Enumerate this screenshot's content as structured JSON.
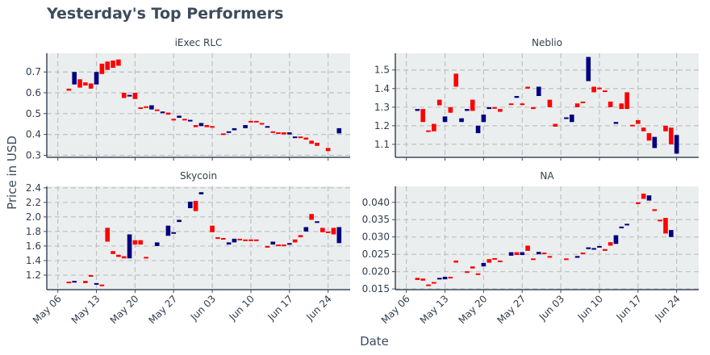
{
  "colors": {
    "up": "#000080",
    "down": "#ff0000",
    "panel_bg": "#ebeeef",
    "grid": "#c0c0c0",
    "axis": "#3d4b5c",
    "text": "#3d4b5c"
  },
  "chart_data": {
    "type": "candlestick",
    "title": "Yesterday's Top Performers",
    "xlabel": "Date",
    "ylabel": "Price in USD",
    "x_ticks": [
      "May 06",
      "May 13",
      "May 20",
      "May 27",
      "Jun 03",
      "Jun 10",
      "Jun 17",
      "Jun 24"
    ],
    "grid": true,
    "panels": [
      {
        "name": "iExec RLC",
        "ylim": [
          0.29,
          0.79
        ],
        "y_ticks": [
          0.3,
          0.4,
          0.5,
          0.6,
          0.7
        ],
        "y_tick_labels": [
          "0.3",
          "0.4",
          "0.5",
          "0.6",
          "0.7"
        ],
        "candles": [
          {
            "d": "May 08",
            "o": 0.62,
            "c": 0.61
          },
          {
            "d": "May 09",
            "o": 0.64,
            "c": 0.7
          },
          {
            "d": "May 10",
            "o": 0.665,
            "c": 0.625
          },
          {
            "d": "May 11",
            "o": 0.65,
            "c": 0.635
          },
          {
            "d": "May 12",
            "o": 0.645,
            "c": 0.62
          },
          {
            "d": "May 13",
            "o": 0.64,
            "c": 0.7
          },
          {
            "d": "May 14",
            "o": 0.74,
            "c": 0.69
          },
          {
            "d": "May 15",
            "o": 0.75,
            "c": 0.71
          },
          {
            "d": "May 16",
            "o": 0.755,
            "c": 0.72
          },
          {
            "d": "May 17",
            "o": 0.76,
            "c": 0.73
          },
          {
            "d": "May 18",
            "o": 0.6,
            "c": 0.575
          },
          {
            "d": "May 19",
            "o": 0.585,
            "c": 0.59
          },
          {
            "d": "May 20",
            "o": 0.6,
            "c": 0.57
          },
          {
            "d": "May 21",
            "o": 0.53,
            "c": 0.525
          },
          {
            "d": "May 22",
            "o": 0.535,
            "c": 0.53
          },
          {
            "d": "May 23",
            "o": 0.52,
            "c": 0.54
          },
          {
            "d": "May 24",
            "o": 0.52,
            "c": 0.515
          },
          {
            "d": "May 25",
            "o": 0.505,
            "c": 0.51
          },
          {
            "d": "May 26",
            "o": 0.505,
            "c": 0.495
          },
          {
            "d": "May 27",
            "o": 0.475,
            "c": 0.47
          },
          {
            "d": "May 28",
            "o": 0.48,
            "c": 0.49
          },
          {
            "d": "May 29",
            "o": 0.475,
            "c": 0.47
          },
          {
            "d": "May 30",
            "o": 0.465,
            "c": 0.47
          },
          {
            "d": "May 31",
            "o": 0.445,
            "c": 0.435
          },
          {
            "d": "Jun 01",
            "o": 0.44,
            "c": 0.455
          },
          {
            "d": "Jun 02",
            "o": 0.445,
            "c": 0.435
          },
          {
            "d": "Jun 03",
            "o": 0.44,
            "c": 0.435
          },
          {
            "d": "Jun 05",
            "o": 0.405,
            "c": 0.4
          },
          {
            "d": "Jun 06",
            "o": 0.41,
            "c": 0.415
          },
          {
            "d": "Jun 07",
            "o": 0.42,
            "c": 0.43
          },
          {
            "d": "Jun 09",
            "o": 0.43,
            "c": 0.445
          },
          {
            "d": "Jun 10",
            "o": 0.465,
            "c": 0.46
          },
          {
            "d": "Jun 11",
            "o": 0.465,
            "c": 0.46
          },
          {
            "d": "Jun 12",
            "o": 0.455,
            "c": 0.45
          },
          {
            "d": "Jun 13",
            "o": 0.435,
            "c": 0.44
          },
          {
            "d": "Jun 14",
            "o": 0.415,
            "c": 0.41
          },
          {
            "d": "Jun 15",
            "o": 0.41,
            "c": 0.405
          },
          {
            "d": "Jun 16",
            "o": 0.41,
            "c": 0.4
          },
          {
            "d": "Jun 17",
            "o": 0.4,
            "c": 0.41
          },
          {
            "d": "Jun 18",
            "o": 0.385,
            "c": 0.39
          },
          {
            "d": "Jun 19",
            "o": 0.39,
            "c": 0.385
          },
          {
            "d": "Jun 20",
            "o": 0.385,
            "c": 0.375
          },
          {
            "d": "Jun 21",
            "o": 0.37,
            "c": 0.355
          },
          {
            "d": "Jun 22",
            "o": 0.36,
            "c": 0.345
          },
          {
            "d": "Jun 24",
            "o": 0.335,
            "c": 0.32
          },
          {
            "d": "Jun 26",
            "o": 0.405,
            "c": 0.43
          }
        ]
      },
      {
        "name": "Neblio",
        "ylim": [
          1.03,
          1.59
        ],
        "y_ticks": [
          1.1,
          1.2,
          1.3,
          1.4,
          1.5
        ],
        "y_tick_labels": [
          "1.1",
          "1.2",
          "1.3",
          "1.4",
          "1.5"
        ],
        "candles": [
          {
            "d": "May 08",
            "o": 1.28,
            "c": 1.29
          },
          {
            "d": "May 09",
            "o": 1.29,
            "c": 1.22
          },
          {
            "d": "May 10",
            "o": 1.175,
            "c": 1.17
          },
          {
            "d": "May 11",
            "o": 1.21,
            "c": 1.17
          },
          {
            "d": "May 12",
            "o": 1.34,
            "c": 1.31
          },
          {
            "d": "May 13",
            "o": 1.22,
            "c": 1.25
          },
          {
            "d": "May 14",
            "o": 1.3,
            "c": 1.27
          },
          {
            "d": "May 15",
            "o": 1.48,
            "c": 1.41
          },
          {
            "d": "May 16",
            "o": 1.22,
            "c": 1.24
          },
          {
            "d": "May 17",
            "o": 1.28,
            "c": 1.29
          },
          {
            "d": "May 18",
            "o": 1.34,
            "c": 1.28
          },
          {
            "d": "May 19",
            "o": 1.16,
            "c": 1.2
          },
          {
            "d": "May 20",
            "o": 1.22,
            "c": 1.26
          },
          {
            "d": "May 21",
            "o": 1.29,
            "c": 1.3
          },
          {
            "d": "May 22",
            "o": 1.3,
            "c": 1.295
          },
          {
            "d": "May 23",
            "o": 1.29,
            "c": 1.275
          },
          {
            "d": "May 25",
            "o": 1.32,
            "c": 1.315
          },
          {
            "d": "May 26",
            "o": 1.35,
            "c": 1.36
          },
          {
            "d": "May 27",
            "o": 1.32,
            "c": 1.315
          },
          {
            "d": "May 28",
            "o": 1.41,
            "c": 1.4
          },
          {
            "d": "May 29",
            "o": 1.3,
            "c": 1.29
          },
          {
            "d": "May 30",
            "o": 1.36,
            "c": 1.41
          },
          {
            "d": "Jun 01",
            "o": 1.34,
            "c": 1.3
          },
          {
            "d": "Jun 02",
            "o": 1.21,
            "c": 1.195
          },
          {
            "d": "Jun 04",
            "o": 1.24,
            "c": 1.245
          },
          {
            "d": "Jun 05",
            "o": 1.22,
            "c": 1.26
          },
          {
            "d": "Jun 06",
            "o": 1.32,
            "c": 1.3
          },
          {
            "d": "Jun 07",
            "o": 1.33,
            "c": 1.325
          },
          {
            "d": "Jun 08",
            "o": 1.44,
            "c": 1.57
          },
          {
            "d": "Jun 09",
            "o": 1.41,
            "c": 1.38
          },
          {
            "d": "Jun 10",
            "o": 1.405,
            "c": 1.4
          },
          {
            "d": "Jun 11",
            "o": 1.39,
            "c": 1.385
          },
          {
            "d": "Jun 12",
            "o": 1.33,
            "c": 1.3
          },
          {
            "d": "Jun 13",
            "o": 1.21,
            "c": 1.22
          },
          {
            "d": "Jun 14",
            "o": 1.32,
            "c": 1.29
          },
          {
            "d": "Jun 15",
            "o": 1.38,
            "c": 1.29
          },
          {
            "d": "Jun 16",
            "o": 1.205,
            "c": 1.2
          },
          {
            "d": "Jun 17",
            "o": 1.23,
            "c": 1.21
          },
          {
            "d": "Jun 18",
            "o": 1.19,
            "c": 1.17
          },
          {
            "d": "Jun 19",
            "o": 1.16,
            "c": 1.12
          },
          {
            "d": "Jun 20",
            "o": 1.08,
            "c": 1.14
          },
          {
            "d": "Jun 22",
            "o": 1.2,
            "c": 1.17
          },
          {
            "d": "Jun 23",
            "o": 1.19,
            "c": 1.1
          },
          {
            "d": "Jun 24",
            "o": 1.05,
            "c": 1.15
          }
        ]
      },
      {
        "name": "Skycoin",
        "ylim": [
          1.0,
          2.42
        ],
        "y_ticks": [
          1.2,
          1.4,
          1.6,
          1.8,
          2.0,
          2.2,
          2.4
        ],
        "y_tick_labels": [
          "1.2",
          "1.4",
          "1.6",
          "1.8",
          "2.0",
          "2.2",
          "2.4"
        ],
        "candles": [
          {
            "d": "May 08",
            "o": 1.11,
            "c": 1.09
          },
          {
            "d": "May 09",
            "o": 1.11,
            "c": 1.12
          },
          {
            "d": "May 11",
            "o": 1.12,
            "c": 1.09
          },
          {
            "d": "May 12",
            "o": 1.2,
            "c": 1.19
          },
          {
            "d": "May 13",
            "o": 1.07,
            "c": 1.09
          },
          {
            "d": "May 14",
            "o": 1.07,
            "c": 1.065
          },
          {
            "d": "May 15",
            "o": 1.85,
            "c": 1.66
          },
          {
            "d": "May 16",
            "o": 1.53,
            "c": 1.49
          },
          {
            "d": "May 17",
            "o": 1.48,
            "c": 1.45
          },
          {
            "d": "May 18",
            "o": 1.46,
            "c": 1.43
          },
          {
            "d": "May 19",
            "o": 1.43,
            "c": 1.76
          },
          {
            "d": "May 20",
            "o": 1.68,
            "c": 1.62
          },
          {
            "d": "May 21",
            "o": 1.68,
            "c": 1.62
          },
          {
            "d": "May 22",
            "o": 1.45,
            "c": 1.445
          },
          {
            "d": "May 24",
            "o": 1.6,
            "c": 1.65
          },
          {
            "d": "May 26",
            "o": 1.74,
            "c": 1.88
          },
          {
            "d": "May 27",
            "o": 1.78,
            "c": 1.79
          },
          {
            "d": "May 28",
            "o": 1.93,
            "c": 1.96
          },
          {
            "d": "May 30",
            "o": 2.12,
            "c": 2.21
          },
          {
            "d": "May 31",
            "o": 2.22,
            "c": 2.08
          },
          {
            "d": "Jun 01",
            "o": 2.31,
            "c": 2.34
          },
          {
            "d": "Jun 03",
            "o": 1.88,
            "c": 1.79
          },
          {
            "d": "Jun 04",
            "o": 1.72,
            "c": 1.715
          },
          {
            "d": "Jun 05",
            "o": 1.71,
            "c": 1.705
          },
          {
            "d": "Jun 06",
            "o": 1.62,
            "c": 1.65
          },
          {
            "d": "Jun 07",
            "o": 1.65,
            "c": 1.7
          },
          {
            "d": "Jun 08",
            "o": 1.7,
            "c": 1.695
          },
          {
            "d": "Jun 09",
            "o": 1.69,
            "c": 1.685
          },
          {
            "d": "Jun 10",
            "o": 1.69,
            "c": 1.685
          },
          {
            "d": "Jun 11",
            "o": 1.69,
            "c": 1.685
          },
          {
            "d": "Jun 13",
            "o": 1.6,
            "c": 1.595
          },
          {
            "d": "Jun 14",
            "o": 1.62,
            "c": 1.66
          },
          {
            "d": "Jun 15",
            "o": 1.62,
            "c": 1.61
          },
          {
            "d": "Jun 16",
            "o": 1.62,
            "c": 1.61
          },
          {
            "d": "Jun 17",
            "o": 1.63,
            "c": 1.64
          },
          {
            "d": "Jun 18",
            "o": 1.69,
            "c": 1.65
          },
          {
            "d": "Jun 19",
            "o": 1.75,
            "c": 1.72
          },
          {
            "d": "Jun 20",
            "o": 1.8,
            "c": 1.86
          },
          {
            "d": "Jun 21",
            "o": 2.04,
            "c": 1.96
          },
          {
            "d": "Jun 22",
            "o": 1.93,
            "c": 1.94
          },
          {
            "d": "Jun 23",
            "o": 1.85,
            "c": 1.79
          },
          {
            "d": "Jun 24",
            "o": 1.8,
            "c": 1.79
          },
          {
            "d": "Jun 25",
            "o": 1.85,
            "c": 1.76
          },
          {
            "d": "Jun 26",
            "o": 1.64,
            "c": 1.86
          }
        ]
      },
      {
        "name": "NA",
        "ylim": [
          0.0148,
          0.0446
        ],
        "y_ticks": [
          0.015,
          0.02,
          0.025,
          0.03,
          0.035,
          0.04
        ],
        "y_tick_labels": [
          "0.015",
          "0.020",
          "0.025",
          "0.030",
          "0.035",
          "0.040"
        ],
        "candles": [
          {
            "d": "May 08",
            "o": 0.0182,
            "c": 0.0176
          },
          {
            "d": "May 09",
            "o": 0.018,
            "c": 0.0174
          },
          {
            "d": "May 10",
            "o": 0.0163,
            "c": 0.0161
          },
          {
            "d": "May 11",
            "o": 0.017,
            "c": 0.0168
          },
          {
            "d": "May 12",
            "o": 0.0178,
            "c": 0.0182
          },
          {
            "d": "May 13",
            "o": 0.0178,
            "c": 0.0185
          },
          {
            "d": "May 14",
            "o": 0.0185,
            "c": 0.0181
          },
          {
            "d": "May 15",
            "o": 0.0232,
            "c": 0.0226
          },
          {
            "d": "May 17",
            "o": 0.0201,
            "c": 0.0199
          },
          {
            "d": "May 18",
            "o": 0.0215,
            "c": 0.0209
          },
          {
            "d": "May 19",
            "o": 0.0195,
            "c": 0.0193
          },
          {
            "d": "May 20",
            "o": 0.0215,
            "c": 0.0225
          },
          {
            "d": "May 21",
            "o": 0.0236,
            "c": 0.0226
          },
          {
            "d": "May 22",
            "o": 0.0239,
            "c": 0.0237
          },
          {
            "d": "May 23",
            "o": 0.0232,
            "c": 0.0228
          },
          {
            "d": "May 25",
            "o": 0.0246,
            "c": 0.0256
          },
          {
            "d": "May 26",
            "o": 0.0256,
            "c": 0.0248
          },
          {
            "d": "May 27",
            "o": 0.0248,
            "c": 0.0256
          },
          {
            "d": "May 28",
            "o": 0.0275,
            "c": 0.026
          },
          {
            "d": "May 29",
            "o": 0.0238,
            "c": 0.0236
          },
          {
            "d": "May 30",
            "o": 0.025,
            "c": 0.0257
          },
          {
            "d": "May 31",
            "o": 0.0255,
            "c": 0.0253
          },
          {
            "d": "Jun 01",
            "o": 0.0245,
            "c": 0.0241
          },
          {
            "d": "Jun 04",
            "o": 0.0238,
            "c": 0.0235
          },
          {
            "d": "Jun 06",
            "o": 0.024,
            "c": 0.0245
          },
          {
            "d": "Jun 07",
            "o": 0.0255,
            "c": 0.0253
          },
          {
            "d": "Jun 08",
            "o": 0.0265,
            "c": 0.027
          },
          {
            "d": "Jun 09",
            "o": 0.0265,
            "c": 0.0268
          },
          {
            "d": "Jun 10",
            "o": 0.0272,
            "c": 0.0274
          },
          {
            "d": "Jun 11",
            "o": 0.0265,
            "c": 0.026
          },
          {
            "d": "Jun 12",
            "o": 0.0285,
            "c": 0.0275
          },
          {
            "d": "Jun 13",
            "o": 0.028,
            "c": 0.0305
          },
          {
            "d": "Jun 14",
            "o": 0.0325,
            "c": 0.033
          },
          {
            "d": "Jun 15",
            "o": 0.0335,
            "c": 0.0338
          },
          {
            "d": "Jun 17",
            "o": 0.04,
            "c": 0.0395
          },
          {
            "d": "Jun 18",
            "o": 0.0425,
            "c": 0.041
          },
          {
            "d": "Jun 19",
            "o": 0.0405,
            "c": 0.042
          },
          {
            "d": "Jun 20",
            "o": 0.038,
            "c": 0.0375
          },
          {
            "d": "Jun 21",
            "o": 0.035,
            "c": 0.0345
          },
          {
            "d": "Jun 22",
            "o": 0.0355,
            "c": 0.031
          },
          {
            "d": "Jun 23",
            "o": 0.03,
            "c": 0.032
          }
        ]
      }
    ]
  }
}
